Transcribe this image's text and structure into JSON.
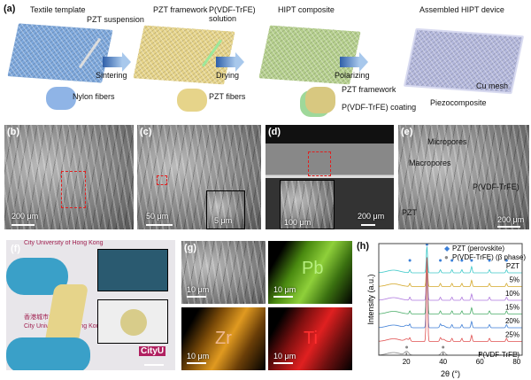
{
  "panels": {
    "a": {
      "label": "(a)",
      "steps": [
        {
          "title": "Textile template",
          "note1": "PZT suspension",
          "fiber": "Nylon fibers"
        },
        {
          "title": "PZT framework",
          "note1": "P(VDF-TrFE)\nsolution",
          "fiber": "PZT fibers"
        },
        {
          "title": "HIPT composite",
          "note1": "PZT framework",
          "fiber": "P(VDF-TrFE) coating"
        },
        {
          "title": "Assembled HIPT device",
          "note1": "Cu mesh",
          "fiber": "Piezocomposite"
        }
      ],
      "arrows": [
        "Sintering",
        "Drying",
        "Polarizing"
      ],
      "colors": [
        "#7ea8dc",
        "#e6d48a",
        "#b6d08e",
        "#b4b8dc"
      ]
    },
    "b": {
      "label": "(b)",
      "scale": "200 μm"
    },
    "c": {
      "label": "(c)",
      "scale": "50 μm",
      "inset_scale": "5 μm"
    },
    "d": {
      "label": "(d)",
      "scale": "200 μm",
      "inset_scale": "100 μm"
    },
    "e": {
      "label": "(e)",
      "scale": "200 μm",
      "labels": [
        "Micropores",
        "Macropores",
        "P(VDF-TrFE)",
        "PZT"
      ]
    },
    "f": {
      "label": "(f)",
      "bg_text": [
        "City University of Hong Kong",
        "香港城市大學",
        "City University of Hong Kong",
        "CityU"
      ]
    },
    "g": {
      "label": "(g)",
      "scale": "10 μm",
      "elements": [
        {
          "symbol": "Pb",
          "color": "#8fd03a"
        },
        {
          "symbol": "Zr",
          "color": "#e09a20"
        },
        {
          "symbol": "Ti",
          "color": "#e02020"
        }
      ]
    },
    "h": {
      "label": "(h)"
    }
  },
  "chart_data": {
    "type": "line",
    "xlabel": "2θ (°)",
    "ylabel": "Intensity (a.u.)",
    "xlim": [
      5,
      83
    ],
    "xticks": [
      20,
      40,
      60,
      80
    ],
    "legend": [
      {
        "marker": "◆",
        "text": "PZT (perovskite)",
        "color": "#3a7fd8"
      },
      {
        "marker": "●",
        "text": "P(VDF-TrFE) (β phase)",
        "color": "#888888"
      }
    ],
    "legend_position": "top-right",
    "pzt_peaks": [
      21.9,
      31.2,
      38.5,
      44.8,
      50.2,
      55.5,
      65.2,
      74.5
    ],
    "pvdf_peaks": [
      20.2,
      40.0
    ],
    "series": [
      {
        "name": "PZT",
        "color": "#3cc8c8"
      },
      {
        "name": "5%",
        "color": "#d4a82a"
      },
      {
        "name": "10%",
        "color": "#b07adf"
      },
      {
        "name": "15%",
        "color": "#4cae6a"
      },
      {
        "name": "20%",
        "color": "#3f7fd6"
      },
      {
        "name": "25%",
        "color": "#e05050"
      },
      {
        "name": "P(VDF-TrFE)",
        "color": "#888888"
      }
    ]
  }
}
